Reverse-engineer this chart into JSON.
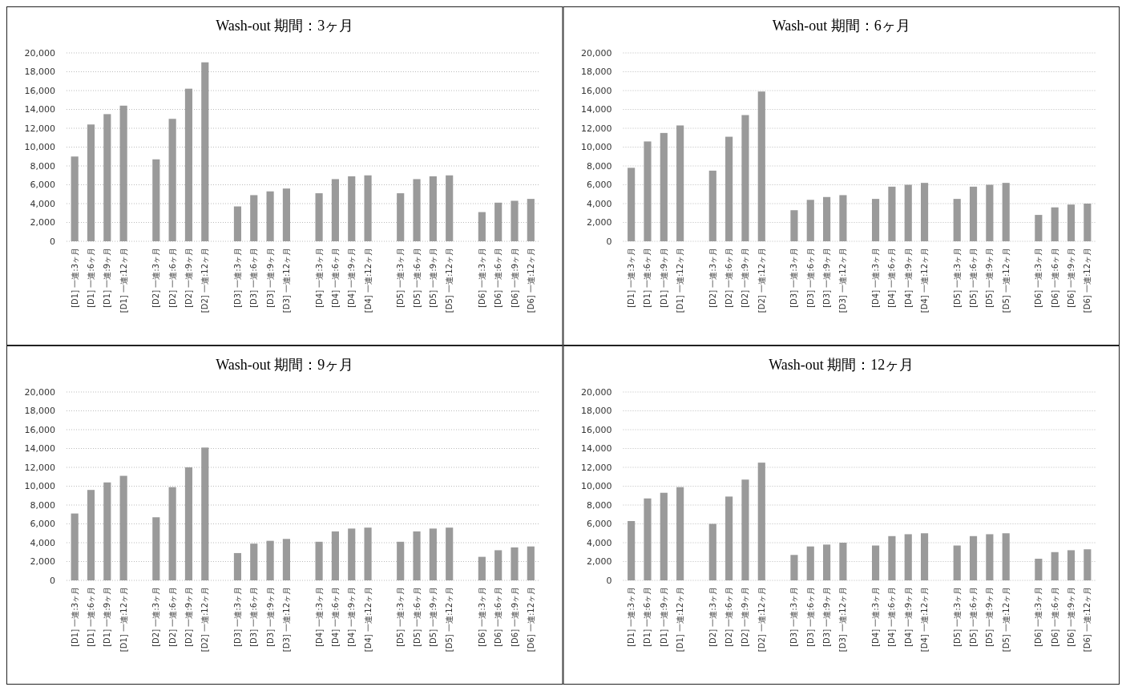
{
  "chart_data": [
    {
      "type": "bar",
      "title": "Wash-out 期間：3ヶ月",
      "categories": [
        "[D1] 一連:3ヶ月",
        "[D1] 一連:6ヶ月",
        "[D1] 一連:9ヶ月",
        "[D1] 一連:12ヶ月",
        null,
        "[D2] 一連:3ヶ月",
        "[D2] 一連:6ヶ月",
        "[D2] 一連:9ヶ月",
        "[D2] 一連:12ヶ月",
        null,
        "[D3] 一連:3ヶ月",
        "[D3] 一連:6ヶ月",
        "[D3] 一連:9ヶ月",
        "[D3] 一連:12ヶ月",
        null,
        "[D4] 一連:3ヶ月",
        "[D4] 一連:6ヶ月",
        "[D4] 一連:9ヶ月",
        "[D4] 一連:12ヶ月",
        null,
        "[D5] 一連:3ヶ月",
        "[D5] 一連:6ヶ月",
        "[D5] 一連:9ヶ月",
        "[D5] 一連:12ヶ月",
        null,
        "[D6] 一連:3ヶ月",
        "[D6] 一連:6ヶ月",
        "[D6] 一連:9ヶ月",
        "[D6] 一連:12ヶ月"
      ],
      "values": [
        9000,
        12400,
        13500,
        14400,
        null,
        8700,
        13000,
        16200,
        19000,
        null,
        3700,
        4900,
        5300,
        5600,
        null,
        5100,
        6600,
        6900,
        7000,
        null,
        5100,
        6600,
        6900,
        7000,
        null,
        3100,
        4100,
        4300,
        4500
      ],
      "color": "#9a9a9a",
      "ylim": [
        0,
        20000
      ],
      "yticks": [
        {
          "value": 0,
          "label": "0"
        },
        {
          "value": 2000,
          "label": "2,000"
        },
        {
          "value": 4000,
          "label": "4,000"
        },
        {
          "value": 6000,
          "label": "6,000"
        },
        {
          "value": 8000,
          "label": "8,000"
        },
        {
          "value": 10000,
          "label": "10,000"
        },
        {
          "value": 12000,
          "label": "12,000"
        },
        {
          "value": 14000,
          "label": "14,000"
        },
        {
          "value": 16000,
          "label": "16,000"
        },
        {
          "value": 18000,
          "label": "18,000"
        },
        {
          "value": 20000,
          "label": "20,000"
        }
      ],
      "grid": "y"
    },
    {
      "type": "bar",
      "title": "Wash-out 期間：6ヶ月",
      "categories": [
        "[D1] 一連:3ヶ月",
        "[D1] 一連:6ヶ月",
        "[D1] 一連:9ヶ月",
        "[D1] 一連:12ヶ月",
        null,
        "[D2] 一連:3ヶ月",
        "[D2] 一連:6ヶ月",
        "[D2] 一連:9ヶ月",
        "[D2] 一連:12ヶ月",
        null,
        "[D3] 一連:3ヶ月",
        "[D3] 一連:6ヶ月",
        "[D3] 一連:9ヶ月",
        "[D3] 一連:12ヶ月",
        null,
        "[D4] 一連:3ヶ月",
        "[D4] 一連:6ヶ月",
        "[D4] 一連:9ヶ月",
        "[D4] 一連:12ヶ月",
        null,
        "[D5] 一連:3ヶ月",
        "[D5] 一連:6ヶ月",
        "[D5] 一連:9ヶ月",
        "[D5] 一連:12ヶ月",
        null,
        "[D6] 一連:3ヶ月",
        "[D6] 一連:6ヶ月",
        "[D6] 一連:9ヶ月",
        "[D6] 一連:12ヶ月"
      ],
      "values": [
        7800,
        10600,
        11500,
        12300,
        null,
        7500,
        11100,
        13400,
        15900,
        null,
        3300,
        4400,
        4700,
        4900,
        null,
        4500,
        5800,
        6000,
        6200,
        null,
        4500,
        5800,
        6000,
        6200,
        null,
        2800,
        3600,
        3900,
        4000
      ],
      "color": "#9a9a9a",
      "ylim": [
        0,
        20000
      ],
      "yticks": [
        {
          "value": 0,
          "label": "0"
        },
        {
          "value": 2000,
          "label": "2,000"
        },
        {
          "value": 4000,
          "label": "4,000"
        },
        {
          "value": 6000,
          "label": "6,000"
        },
        {
          "value": 8000,
          "label": "8,000"
        },
        {
          "value": 10000,
          "label": "10,000"
        },
        {
          "value": 12000,
          "label": "12,000"
        },
        {
          "value": 14000,
          "label": "14,000"
        },
        {
          "value": 16000,
          "label": "16,000"
        },
        {
          "value": 18000,
          "label": "18,000"
        },
        {
          "value": 20000,
          "label": "20,000"
        }
      ],
      "grid": "y"
    },
    {
      "type": "bar",
      "title": "Wash-out 期間：9ヶ月",
      "categories": [
        "[D1] 一連:3ヶ月",
        "[D1] 一連:6ヶ月",
        "[D1] 一連:9ヶ月",
        "[D1] 一連:12ヶ月",
        null,
        "[D2] 一連:3ヶ月",
        "[D2] 一連:6ヶ月",
        "[D2] 一連:9ヶ月",
        "[D2] 一連:12ヶ月",
        null,
        "[D3] 一連:3ヶ月",
        "[D3] 一連:6ヶ月",
        "[D3] 一連:9ヶ月",
        "[D3] 一連:12ヶ月",
        null,
        "[D4] 一連:3ヶ月",
        "[D4] 一連:6ヶ月",
        "[D4] 一連:9ヶ月",
        "[D4] 一連:12ヶ月",
        null,
        "[D5] 一連:3ヶ月",
        "[D5] 一連:6ヶ月",
        "[D5] 一連:9ヶ月",
        "[D5] 一連:12ヶ月",
        null,
        "[D6] 一連:3ヶ月",
        "[D6] 一連:6ヶ月",
        "[D6] 一連:9ヶ月",
        "[D6] 一連:12ヶ月"
      ],
      "values": [
        7100,
        9600,
        10400,
        11100,
        null,
        6700,
        9900,
        12000,
        14100,
        null,
        2900,
        3900,
        4200,
        4400,
        null,
        4100,
        5200,
        5500,
        5600,
        null,
        4100,
        5200,
        5500,
        5600,
        null,
        2500,
        3200,
        3500,
        3600
      ],
      "color": "#9a9a9a",
      "ylim": [
        0,
        20000
      ],
      "yticks": [
        {
          "value": 0,
          "label": "0"
        },
        {
          "value": 2000,
          "label": "2,000"
        },
        {
          "value": 4000,
          "label": "4,000"
        },
        {
          "value": 6000,
          "label": "6,000"
        },
        {
          "value": 8000,
          "label": "8,000"
        },
        {
          "value": 10000,
          "label": "10,000"
        },
        {
          "value": 12000,
          "label": "12,000"
        },
        {
          "value": 14000,
          "label": "14,000"
        },
        {
          "value": 16000,
          "label": "16,000"
        },
        {
          "value": 18000,
          "label": "18,000"
        },
        {
          "value": 20000,
          "label": "20,000"
        }
      ],
      "grid": "y"
    },
    {
      "type": "bar",
      "title": "Wash-out 期間：12ヶ月",
      "categories": [
        "[D1] 一連:3ヶ月",
        "[D1] 一連:6ヶ月",
        "[D1] 一連:9ヶ月",
        "[D1] 一連:12ヶ月",
        null,
        "[D2] 一連:3ヶ月",
        "[D2] 一連:6ヶ月",
        "[D2] 一連:9ヶ月",
        "[D2] 一連:12ヶ月",
        null,
        "[D3] 一連:3ヶ月",
        "[D3] 一連:6ヶ月",
        "[D3] 一連:9ヶ月",
        "[D3] 一連:12ヶ月",
        null,
        "[D4] 一連:3ヶ月",
        "[D4] 一連:6ヶ月",
        "[D4] 一連:9ヶ月",
        "[D4] 一連:12ヶ月",
        null,
        "[D5] 一連:3ヶ月",
        "[D5] 一連:6ヶ月",
        "[D5] 一連:9ヶ月",
        "[D5] 一連:12ヶ月",
        null,
        "[D6] 一連:3ヶ月",
        "[D6] 一連:6ヶ月",
        "[D6] 一連:9ヶ月",
        "[D6] 一連:12ヶ月"
      ],
      "values": [
        6300,
        8700,
        9300,
        9900,
        null,
        6000,
        8900,
        10700,
        12500,
        null,
        2700,
        3600,
        3800,
        4000,
        null,
        3700,
        4700,
        4900,
        5000,
        null,
        3700,
        4700,
        4900,
        5000,
        null,
        2300,
        3000,
        3200,
        3300
      ],
      "color": "#9a9a9a",
      "ylim": [
        0,
        20000
      ],
      "yticks": [
        {
          "value": 0,
          "label": "0"
        },
        {
          "value": 2000,
          "label": "2,000"
        },
        {
          "value": 4000,
          "label": "4,000"
        },
        {
          "value": 6000,
          "label": "6,000"
        },
        {
          "value": 8000,
          "label": "8,000"
        },
        {
          "value": 10000,
          "label": "10,000"
        },
        {
          "value": 12000,
          "label": "12,000"
        },
        {
          "value": 14000,
          "label": "14,000"
        },
        {
          "value": 16000,
          "label": "16,000"
        },
        {
          "value": 18000,
          "label": "18,000"
        },
        {
          "value": 20000,
          "label": "20,000"
        }
      ],
      "grid": "y"
    }
  ]
}
